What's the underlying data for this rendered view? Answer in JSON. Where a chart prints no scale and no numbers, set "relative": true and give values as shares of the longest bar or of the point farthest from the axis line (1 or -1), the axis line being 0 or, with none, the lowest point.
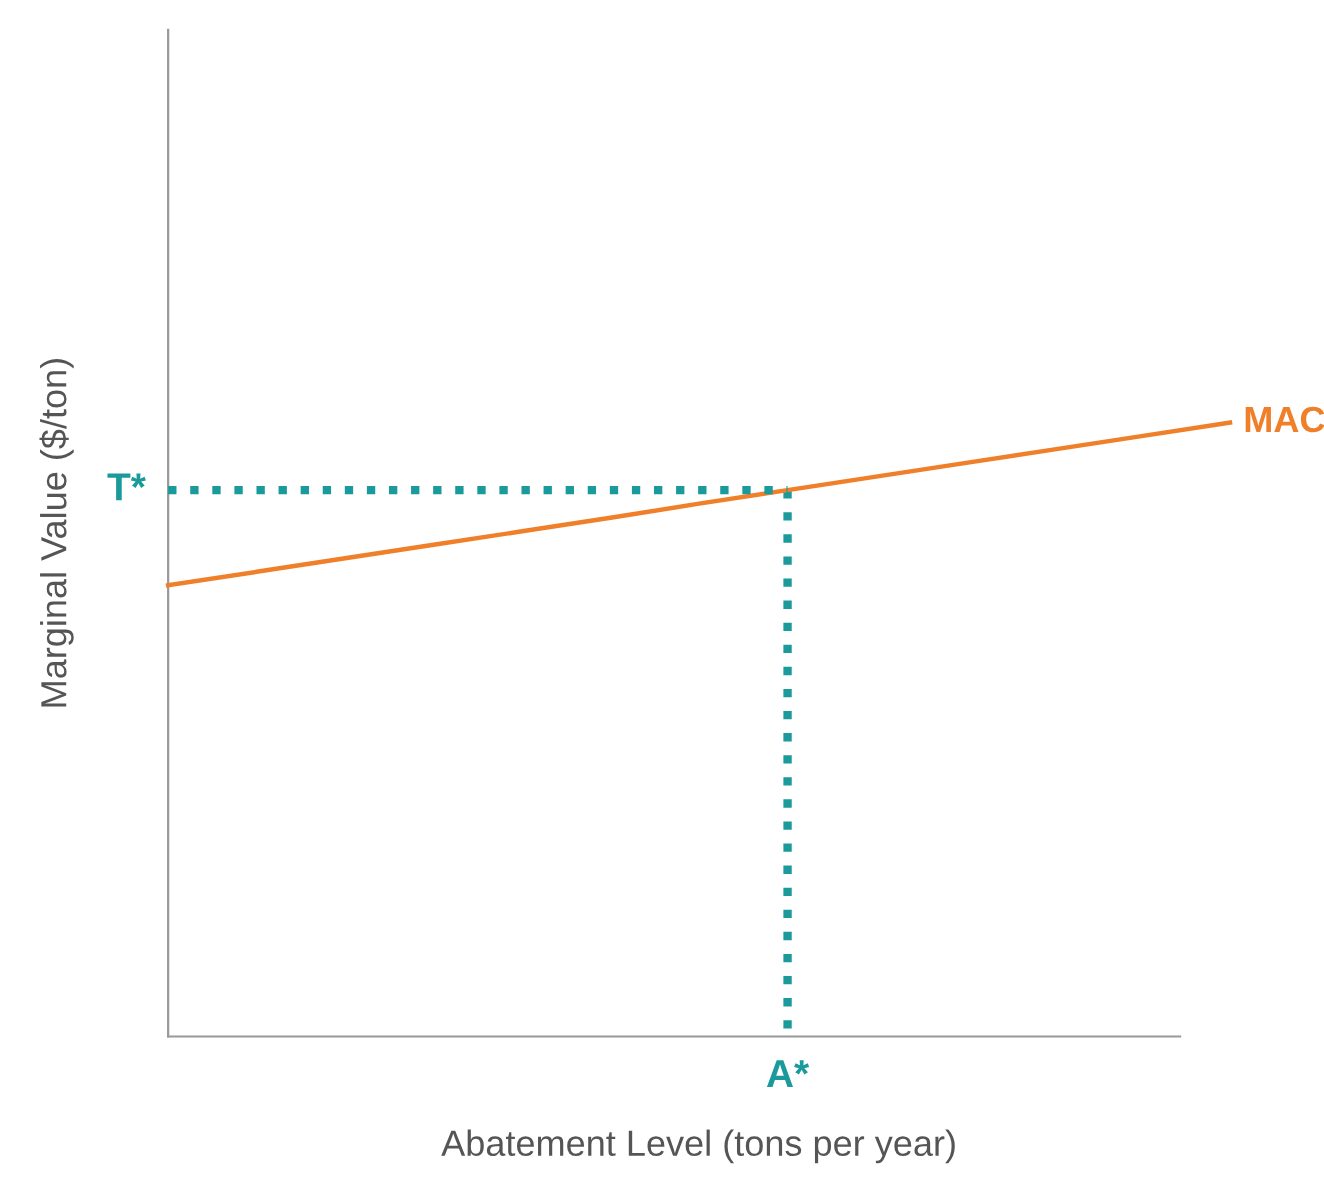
{
  "chart_data": {
    "type": "line",
    "relative": true,
    "xlabel": "Abatement Level (tons per year)",
    "ylabel": "Marginal Value ($/ton)",
    "legend": false,
    "categories": [
      null,
      null,
      null,
      null,
      null,
      null,
      null,
      null,
      null,
      null,
      null,
      null,
      null
    ],
    "series": [
      {
        "name": "MAC",
        "color": "#f07f2a",
        "values": [
          0.735,
          0.757,
          0.779,
          0.801,
          0.823,
          0.845,
          0.868,
          0.89,
          0.912,
          0.934,
          0.956,
          0.978,
          1
        ],
        "line_style": "solid"
      },
      {
        "color": "#1a9a9a",
        "values": [
          0.89,
          0.89,
          0.89,
          0.89,
          0.89,
          0.89,
          0.89,
          0.89,
          null,
          null,
          null,
          null,
          null
        ],
        "line_style": "dotted"
      }
    ],
    "annotations": [
      "T*",
      "A*"
    ]
  }
}
